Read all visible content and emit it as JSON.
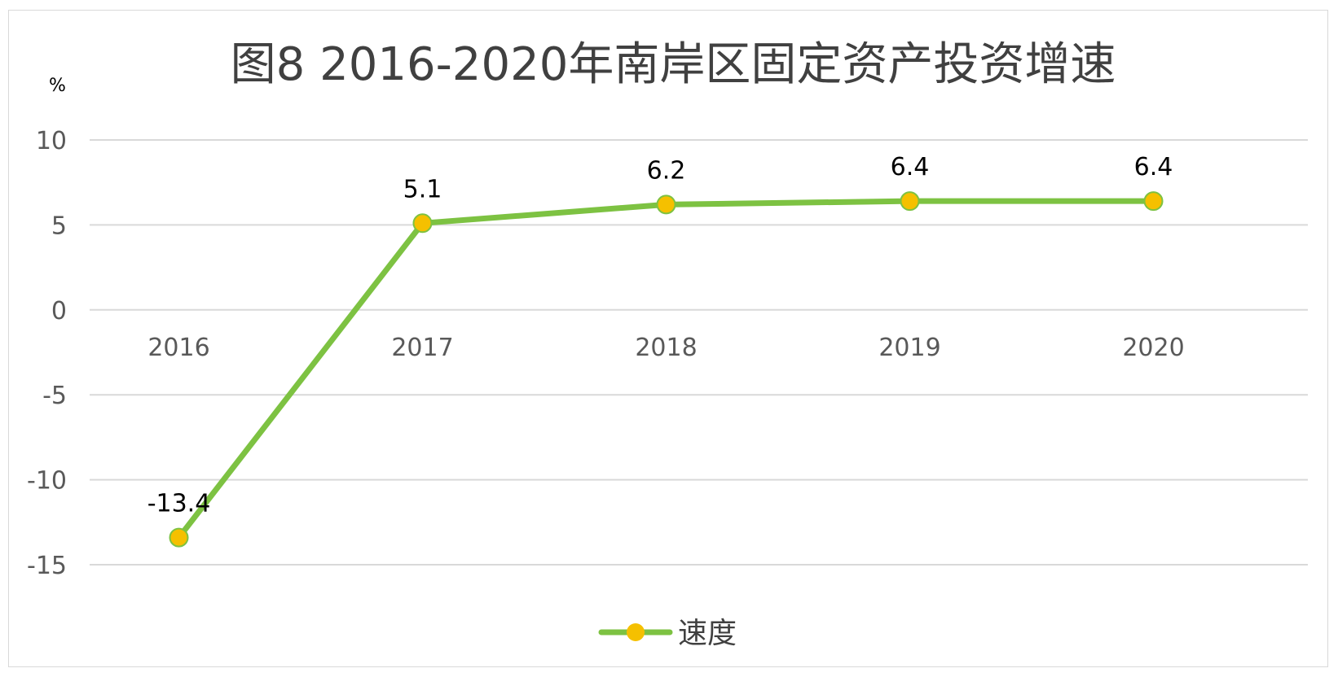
{
  "chart_data": {
    "type": "line",
    "title": "图8  2016-2020年南岸区固定资产投资增速",
    "ylabel": "%",
    "xlabel": "",
    "categories": [
      "2016",
      "2017",
      "2018",
      "2019",
      "2020"
    ],
    "ylim": [
      -15,
      10
    ],
    "yticks": [
      10,
      5,
      0,
      -5,
      -10,
      -15
    ],
    "grid": true,
    "legend_position": "bottom",
    "series": [
      {
        "name": "速度",
        "values": [
          -13.4,
          5.1,
          6.2,
          6.4,
          6.4
        ],
        "data_labels": [
          "-13.4",
          "5.1",
          "6.2",
          "6.4",
          "6.4"
        ],
        "line_color": "#7dc242",
        "marker_color": "#f5c000"
      }
    ]
  }
}
